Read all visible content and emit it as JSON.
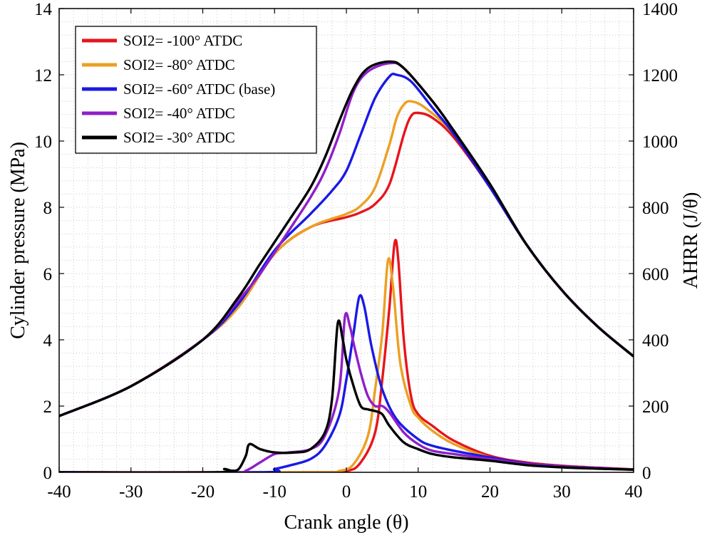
{
  "chart_data": {
    "type": "line",
    "title": "",
    "xlabel": "Crank angle (θ)",
    "ylabel_left": "Cylinder pressure (MPa)",
    "ylabel_right": "AHRR (J/θ)",
    "xlim": [
      -40,
      40
    ],
    "ylim_left": [
      0,
      14
    ],
    "ylim_right": [
      0,
      1400
    ],
    "xticks": [
      "-40",
      "-30",
      "-20",
      "-10",
      "0",
      "10",
      "20",
      "30",
      "40"
    ],
    "yticks_left": [
      "0",
      "2",
      "4",
      "6",
      "8",
      "10",
      "12",
      "14"
    ],
    "yticks_right": [
      "0",
      "200",
      "400",
      "600",
      "800",
      "1000",
      "1200",
      "1400"
    ],
    "grid": "minor dotted",
    "legend_position": "top-left",
    "series": [
      {
        "name": "SOI2= -100° ATDC",
        "color": "#e8141b",
        "pressure": [
          [
            -40,
            1.7
          ],
          [
            -30,
            2.6
          ],
          [
            -20,
            4.0
          ],
          [
            -15,
            5.0
          ],
          [
            -10,
            6.6
          ],
          [
            -5,
            7.4
          ],
          [
            0,
            7.7
          ],
          [
            2,
            7.85
          ],
          [
            4,
            8.1
          ],
          [
            6,
            8.7
          ],
          [
            8,
            10.2
          ],
          [
            9,
            10.75
          ],
          [
            10,
            10.85
          ],
          [
            12,
            10.7
          ],
          [
            15,
            10.1
          ],
          [
            20,
            8.6
          ],
          [
            25,
            6.9
          ],
          [
            30,
            5.5
          ],
          [
            35,
            4.4
          ],
          [
            40,
            3.5
          ]
        ],
        "ahrr": [
          [
            -40,
            0
          ],
          [
            -5,
            0
          ],
          [
            0,
            4
          ],
          [
            2,
            30
          ],
          [
            4,
            120
          ],
          [
            5,
            280
          ],
          [
            6,
            500
          ],
          [
            6.7,
            690
          ],
          [
            7.2,
            650
          ],
          [
            8,
            400
          ],
          [
            9,
            230
          ],
          [
            10,
            175
          ],
          [
            12,
            140
          ],
          [
            15,
            95
          ],
          [
            20,
            50
          ],
          [
            25,
            30
          ],
          [
            30,
            20
          ],
          [
            35,
            14
          ],
          [
            40,
            9
          ]
        ]
      },
      {
        "name": "SOI2= -80° ATDC",
        "color": "#eba023",
        "pressure": [
          [
            -40,
            1.7
          ],
          [
            -30,
            2.6
          ],
          [
            -20,
            4.0
          ],
          [
            -15,
            5.0
          ],
          [
            -10,
            6.6
          ],
          [
            -5,
            7.4
          ],
          [
            0,
            7.8
          ],
          [
            2,
            8.05
          ],
          [
            4,
            8.6
          ],
          [
            6,
            9.9
          ],
          [
            7,
            10.7
          ],
          [
            8,
            11.1
          ],
          [
            9,
            11.2
          ],
          [
            11,
            11.0
          ],
          [
            15,
            10.2
          ],
          [
            20,
            8.6
          ],
          [
            25,
            6.9
          ],
          [
            30,
            5.5
          ],
          [
            35,
            4.4
          ],
          [
            40,
            3.5
          ]
        ],
        "ahrr": [
          [
            -40,
            0
          ],
          [
            -5,
            0
          ],
          [
            -1,
            4
          ],
          [
            1,
            25
          ],
          [
            3,
            110
          ],
          [
            4,
            250
          ],
          [
            5,
            420
          ],
          [
            5.8,
            640
          ],
          [
            6.5,
            560
          ],
          [
            7.5,
            330
          ],
          [
            9,
            200
          ],
          [
            10,
            165
          ],
          [
            12,
            125
          ],
          [
            15,
            85
          ],
          [
            20,
            45
          ],
          [
            25,
            27
          ],
          [
            30,
            18
          ],
          [
            35,
            13
          ],
          [
            40,
            8
          ]
        ]
      },
      {
        "name": "SOI2= -60° ATDC (base)",
        "color": "#1919e6",
        "pressure": [
          [
            -40,
            1.7
          ],
          [
            -30,
            2.6
          ],
          [
            -20,
            4.0
          ],
          [
            -15,
            5.1
          ],
          [
            -10,
            6.7
          ],
          [
            -5,
            7.8
          ],
          [
            -2,
            8.5
          ],
          [
            0,
            9.1
          ],
          [
            2,
            10.2
          ],
          [
            4,
            11.3
          ],
          [
            6,
            11.95
          ],
          [
            7,
            12.0
          ],
          [
            9,
            11.8
          ],
          [
            12,
            11.0
          ],
          [
            15,
            10.2
          ],
          [
            20,
            8.6
          ],
          [
            25,
            6.9
          ],
          [
            30,
            5.5
          ],
          [
            35,
            4.4
          ],
          [
            40,
            3.5
          ]
        ],
        "ahrr": [
          [
            -40,
            0
          ],
          [
            -12,
            0
          ],
          [
            -10,
            10
          ],
          [
            -8,
            20
          ],
          [
            -5,
            40
          ],
          [
            -3,
            80
          ],
          [
            -1,
            170
          ],
          [
            0,
            280
          ],
          [
            1,
            420
          ],
          [
            1.8,
            530
          ],
          [
            2.5,
            500
          ],
          [
            3.5,
            380
          ],
          [
            5,
            250
          ],
          [
            7,
            160
          ],
          [
            10,
            100
          ],
          [
            12,
            80
          ],
          [
            15,
            65
          ],
          [
            20,
            45
          ],
          [
            25,
            27
          ],
          [
            30,
            18
          ],
          [
            35,
            13
          ],
          [
            40,
            8
          ]
        ]
      },
      {
        "name": "SOI2= -40° ATDC",
        "color": "#8f1fc8",
        "pressure": [
          [
            -40,
            1.7
          ],
          [
            -30,
            2.6
          ],
          [
            -20,
            4.0
          ],
          [
            -15,
            5.2
          ],
          [
            -12,
            6.0
          ],
          [
            -8,
            7.3
          ],
          [
            -5,
            8.3
          ],
          [
            -3,
            9.1
          ],
          [
            -1,
            10.2
          ],
          [
            1,
            11.5
          ],
          [
            3,
            12.1
          ],
          [
            6,
            12.35
          ],
          [
            8,
            12.2
          ],
          [
            12,
            11.2
          ],
          [
            15,
            10.3
          ],
          [
            20,
            8.7
          ],
          [
            25,
            6.9
          ],
          [
            30,
            5.5
          ],
          [
            35,
            4.4
          ],
          [
            40,
            3.5
          ]
        ],
        "ahrr": [
          [
            -40,
            0
          ],
          [
            -16,
            0
          ],
          [
            -14,
            5
          ],
          [
            -12,
            30
          ],
          [
            -10,
            55
          ],
          [
            -8,
            60
          ],
          [
            -5,
            70
          ],
          [
            -3,
            110
          ],
          [
            -1,
            250
          ],
          [
            -0.2,
            470
          ],
          [
            0.5,
            440
          ],
          [
            1,
            390
          ],
          [
            2,
            300
          ],
          [
            3,
            230
          ],
          [
            4,
            200
          ],
          [
            5,
            200
          ],
          [
            6,
            180
          ],
          [
            8,
            120
          ],
          [
            10,
            85
          ],
          [
            12,
            65
          ],
          [
            15,
            55
          ],
          [
            20,
            40
          ],
          [
            25,
            25
          ],
          [
            30,
            17
          ],
          [
            35,
            12
          ],
          [
            40,
            8
          ]
        ]
      },
      {
        "name": "SOI2= -30° ATDC",
        "color": "#000000",
        "pressure": [
          [
            -40,
            1.7
          ],
          [
            -30,
            2.6
          ],
          [
            -20,
            4.0
          ],
          [
            -15,
            5.3
          ],
          [
            -12,
            6.3
          ],
          [
            -8,
            7.6
          ],
          [
            -5,
            8.6
          ],
          [
            -3,
            9.5
          ],
          [
            -1,
            10.6
          ],
          [
            1,
            11.6
          ],
          [
            3,
            12.2
          ],
          [
            6,
            12.4
          ],
          [
            8,
            12.2
          ],
          [
            12,
            11.2
          ],
          [
            15,
            10.3
          ],
          [
            20,
            8.7
          ],
          [
            25,
            6.9
          ],
          [
            30,
            5.5
          ],
          [
            35,
            4.4
          ],
          [
            40,
            3.5
          ]
        ],
        "ahrr": [
          [
            -40,
            0
          ],
          [
            -18,
            0
          ],
          [
            -17,
            10
          ],
          [
            -16,
            5
          ],
          [
            -15,
            10
          ],
          [
            -14,
            50
          ],
          [
            -13.5,
            85
          ],
          [
            -12,
            70
          ],
          [
            -10,
            60
          ],
          [
            -7,
            60
          ],
          [
            -5,
            70
          ],
          [
            -3,
            120
          ],
          [
            -2,
            220
          ],
          [
            -1.2,
            450
          ],
          [
            -0.5,
            400
          ],
          [
            0,
            340
          ],
          [
            1,
            260
          ],
          [
            2,
            200
          ],
          [
            3,
            190
          ],
          [
            4,
            185
          ],
          [
            5,
            175
          ],
          [
            6,
            140
          ],
          [
            8,
            90
          ],
          [
            10,
            70
          ],
          [
            12,
            55
          ],
          [
            15,
            45
          ],
          [
            20,
            35
          ],
          [
            25,
            22
          ],
          [
            30,
            15
          ],
          [
            35,
            11
          ],
          [
            40,
            8
          ]
        ]
      }
    ]
  }
}
